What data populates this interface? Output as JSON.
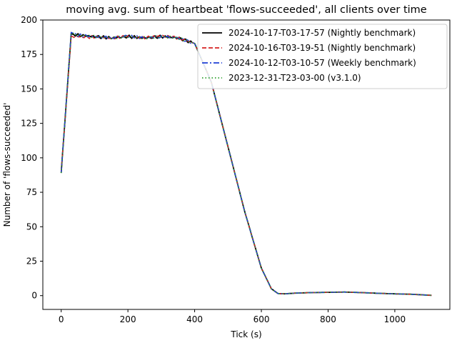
{
  "chart_data": {
    "type": "line",
    "title": "moving avg. sum of heartbeat 'flows-succeeded', all clients over time",
    "xlabel": "Tick (s)",
    "ylabel": "Number of 'flows-succeeded'",
    "xlim": [
      -55,
      1165
    ],
    "ylim": [
      -10,
      200
    ],
    "xticks": [
      0,
      200,
      400,
      600,
      800,
      1000
    ],
    "yticks": [
      0,
      25,
      50,
      75,
      100,
      125,
      150,
      175,
      200
    ],
    "grid": false,
    "legend_position": "top-right",
    "series": [
      {
        "name": "2024-10-17-T03-17-57 (Nightly benchmark)",
        "color": "#000000",
        "dash": "solid",
        "x": [
          0,
          30,
          50,
          100,
          150,
          200,
          250,
          300,
          350,
          400,
          450,
          500,
          550,
          600,
          630,
          650,
          670,
          700,
          750,
          800,
          850,
          900,
          950,
          1000,
          1050,
          1110
        ],
        "y": [
          89,
          190,
          189,
          188,
          187,
          188,
          187,
          188,
          187,
          183,
          155,
          108,
          61,
          20,
          5,
          1.5,
          1.3,
          1.8,
          2.2,
          2.4,
          2.6,
          2.2,
          1.7,
          1.3,
          1.0,
          0.2
        ]
      },
      {
        "name": "2024-10-16-T03-19-51 (Nightly benchmark)",
        "color": "#d62020",
        "dash": "dashed",
        "x": [
          0,
          30,
          50,
          100,
          150,
          200,
          250,
          300,
          350,
          400,
          450,
          500,
          550,
          600,
          630,
          650,
          670,
          700,
          750,
          800,
          850,
          900,
          950,
          1000,
          1050,
          1110
        ],
        "y": [
          90,
          188,
          188,
          187.5,
          187,
          188,
          187,
          188.5,
          187,
          183,
          155,
          108,
          61,
          20,
          5,
          1.5,
          1.3,
          1.8,
          2.2,
          2.4,
          2.6,
          2.2,
          1.7,
          1.3,
          1.0,
          0.2
        ]
      },
      {
        "name": "2024-10-12-T03-10-57 (Weekly benchmark)",
        "color": "#1f3fd6",
        "dash": "dashdot",
        "x": [
          0,
          30,
          50,
          100,
          150,
          200,
          250,
          300,
          350,
          400,
          450,
          500,
          550,
          600,
          630,
          650,
          670,
          700,
          750,
          800,
          850,
          900,
          950,
          1000,
          1050,
          1110
        ],
        "y": [
          89,
          191,
          189,
          188,
          187,
          188.5,
          187,
          188,
          187,
          183,
          155,
          108,
          61,
          20,
          5,
          1.5,
          1.3,
          1.8,
          2.2,
          2.4,
          2.6,
          2.2,
          1.7,
          1.3,
          1.0,
          0.2
        ]
      },
      {
        "name": "2023-12-31-T23-03-00 (v3.1.0)",
        "color": "#2ca02c",
        "dash": "dotted",
        "x": [
          0,
          30,
          50,
          100,
          150,
          200,
          250,
          300,
          350,
          400,
          450,
          500,
          550,
          600,
          630,
          650,
          670,
          700,
          750,
          800,
          850,
          900,
          950,
          1000,
          1050,
          1110
        ],
        "y": [
          89,
          190,
          189,
          188,
          187,
          188,
          187,
          188,
          187,
          183,
          155,
          108,
          61,
          20,
          5,
          1.5,
          1.3,
          1.8,
          2.2,
          2.4,
          2.6,
          2.2,
          1.7,
          1.3,
          1.0,
          0.2
        ]
      }
    ]
  }
}
